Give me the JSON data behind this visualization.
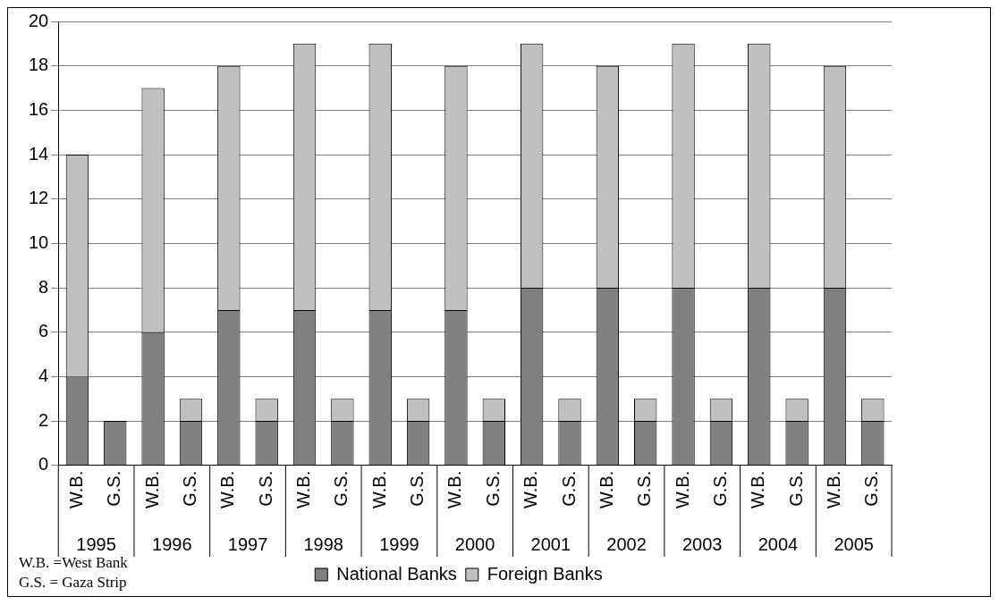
{
  "chart_data": {
    "type": "bar",
    "stacked": true,
    "categories": [
      "W.B.",
      "G.S.",
      "W.B.",
      "G.S.",
      "W.B.",
      "G.S.",
      "W.B.",
      "G.S.",
      "W.B.",
      "G.S.",
      "W.B.",
      "G.S.",
      "W.B.",
      "G.S.",
      "W.B.",
      "G.S.",
      "W.B.",
      "G.S.",
      "W.B.",
      "G.S.",
      "W.B.",
      "G.S."
    ],
    "series": [
      {
        "name": "National Banks",
        "color": "#808080",
        "values": [
          4,
          2,
          6,
          2,
          7,
          2,
          7,
          2,
          7,
          2,
          7,
          2,
          8,
          2,
          8,
          2,
          8,
          2,
          8,
          2,
          8,
          2
        ]
      },
      {
        "name": "Foreign Banks",
        "color": "#c0c0c0",
        "values": [
          10,
          0,
          11,
          1,
          11,
          1,
          12,
          1,
          12,
          1,
          11,
          1,
          11,
          1,
          10,
          1,
          11,
          1,
          11,
          1,
          10,
          1
        ]
      }
    ],
    "annotations": [
      "1995",
      "1996",
      "1997",
      "1998",
      "1999",
      "2000",
      "2001",
      "2002",
      "2003",
      "2004",
      "2005",
      "W.B. =West Bank",
      "G.S. = Gaza Strip"
    ],
    "ylim": [
      0,
      20
    ],
    "yticks": [
      0,
      2,
      4,
      6,
      8,
      10,
      12,
      14,
      16,
      18,
      20
    ],
    "grid": "y",
    "legend": "bottom"
  }
}
